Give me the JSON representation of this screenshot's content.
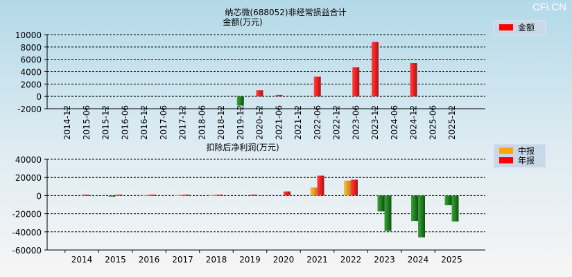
{
  "watermark": "CFi.CN",
  "chart_data": [
    {
      "type": "bar",
      "title": "纳芯微(688052)非经常损益合计",
      "ylabel": "金额(万元)",
      "ylim": [
        -2000,
        10000
      ],
      "yticks": [
        10000,
        8000,
        6000,
        4000,
        2000,
        0,
        -2000
      ],
      "categories": [
        "2014-12",
        "2015-06",
        "2015-12",
        "2016-06",
        "2016-12",
        "2017-06",
        "2017-12",
        "2018-06",
        "2018-12",
        "2019-12",
        "2020-12",
        "2021-06",
        "2021-12",
        "2022-06",
        "2022-12",
        "2023-06",
        "2023-12",
        "2024-06",
        "2024-12",
        "2025-06",
        "2025-12"
      ],
      "series": [
        {
          "name": "金额",
          "color": "#ff0000",
          "values": [
            null,
            null,
            null,
            null,
            null,
            null,
            null,
            null,
            null,
            -1500,
            1000,
            250,
            null,
            3200,
            null,
            4700,
            8800,
            null,
            5400,
            null,
            null
          ]
        }
      ],
      "legend": "top-right"
    },
    {
      "type": "bar",
      "title": "扣除后净利润(万元)",
      "ylim": [
        -60000,
        40000
      ],
      "yticks": [
        40000,
        20000,
        0,
        -20000,
        -40000,
        -60000
      ],
      "categories": [
        "2014",
        "2015",
        "2016",
        "2017",
        "2018",
        "2019",
        "2020",
        "2021",
        "2022",
        "2023",
        "2024",
        "2025"
      ],
      "series": [
        {
          "name": "中报",
          "color": "#ffa500",
          "values": [
            null,
            -300,
            800,
            800,
            800,
            null,
            null,
            9000,
            16500,
            -17500,
            -28000,
            -10500
          ]
        },
        {
          "name": "年报",
          "color": "#ff0000",
          "values": [
            1000,
            1000,
            1000,
            1000,
            1000,
            1000,
            4500,
            22000,
            17500,
            -39000,
            -46000,
            -28500
          ]
        }
      ],
      "legend": "top-right"
    }
  ]
}
